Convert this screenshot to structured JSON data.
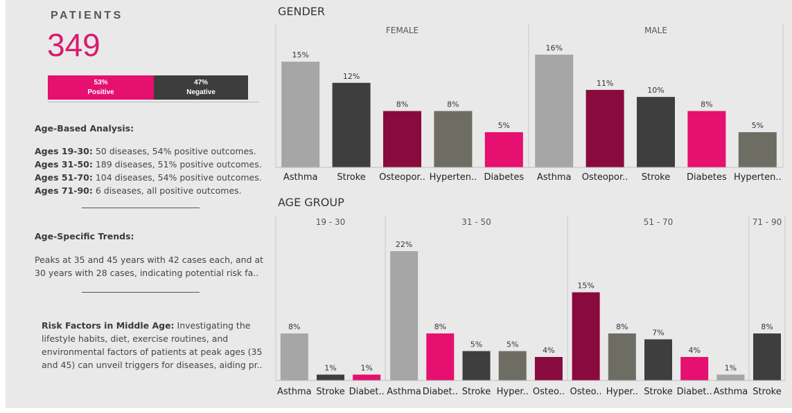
{
  "kpi": {
    "label": "PATIENTS",
    "value": "349"
  },
  "outcome_bar": {
    "positive": {
      "pct": "53%",
      "label": "Positive",
      "value": 53,
      "color": "#e5106f"
    },
    "negative": {
      "pct": "47%",
      "label": "Negative",
      "value": 47,
      "color": "#3d3d3d"
    }
  },
  "left_text": {
    "age_based_title": "Age-Based Analysis:",
    "age_rows": [
      {
        "label": "Ages 19-30:",
        "text": " 50 diseases, 54% positive outcomes."
      },
      {
        "label": "Ages 31-50:",
        "text": " 189 diseases, 51% positive outcomes."
      },
      {
        "label": "Ages 51-70:",
        "text": " 104 diseases, 54% positive outcomes."
      },
      {
        "label": "Ages 71-90:",
        "text": " 6 diseases, all positive outcomes."
      }
    ],
    "trends_title": "Age-Specific Trends:",
    "trends_line1": "Peaks at 35 and 45 years with 42 cases each, and at",
    "trends_line2": "30 years with 28 cases, indicating potential risk fa..",
    "risk_label": "Risk Factors in Middle Age:",
    "risk_line1": " Investigating the",
    "risk_line2": "lifestyle habits, diet, exercise routines, and",
    "risk_line3": "environmental factors of patients at peak ages (35",
    "risk_line4": "and 45) can unveil triggers for diseases, aiding pr.."
  },
  "colors": {
    "Asthma": "#a5a6a5",
    "Stroke": "#3d3e3d",
    "Osteoporosis": "#890a3e",
    "Hypertension": "#6e6d64",
    "Diabetes": "#e5106f"
  },
  "chart_data": [
    {
      "type": "bar",
      "title": "GENDER",
      "panels": [
        {
          "name": "FEMALE",
          "categories": [
            "Asthma",
            "Stroke",
            "Osteopor..",
            "Hyperten..",
            "Diabetes"
          ],
          "diseases": [
            "Asthma",
            "Stroke",
            "Osteoporosis",
            "Hypertension",
            "Diabetes"
          ],
          "values": [
            15,
            12,
            8,
            8,
            5
          ],
          "labels": [
            "15%",
            "12%",
            "8%",
            "8%",
            "5%"
          ]
        },
        {
          "name": "MALE",
          "categories": [
            "Asthma",
            "Osteopor..",
            "Stroke",
            "Diabetes",
            "Hyperten.."
          ],
          "diseases": [
            "Asthma",
            "Osteoporosis",
            "Stroke",
            "Diabetes",
            "Hypertension"
          ],
          "values": [
            16,
            11,
            10,
            8,
            5
          ],
          "labels": [
            "16%",
            "11%",
            "10%",
            "8%",
            "5%"
          ]
        }
      ]
    },
    {
      "type": "bar",
      "title": "AGE GROUP",
      "panels": [
        {
          "name": "19 - 30",
          "categories": [
            "Asthma",
            "Stroke",
            "Diabet.."
          ],
          "diseases": [
            "Asthma",
            "Stroke",
            "Diabetes"
          ],
          "values": [
            8,
            1,
            1
          ],
          "labels": [
            "8%",
            "1%",
            "1%"
          ]
        },
        {
          "name": "31 - 50",
          "categories": [
            "Asthma",
            "Diabet..",
            "Stroke",
            "Hyper..",
            "Osteo.."
          ],
          "diseases": [
            "Asthma",
            "Diabetes",
            "Stroke",
            "Hypertension",
            "Osteoporosis"
          ],
          "values": [
            22,
            8,
            5,
            5,
            4
          ],
          "labels": [
            "22%",
            "8%",
            "5%",
            "5%",
            "4%"
          ]
        },
        {
          "name": "51 - 70",
          "categories": [
            "Osteo..",
            "Hyper..",
            "Stroke",
            "Diabet..",
            "Asthma"
          ],
          "diseases": [
            "Osteoporosis",
            "Hypertension",
            "Stroke",
            "Diabetes",
            "Asthma"
          ],
          "values": [
            15,
            8,
            7,
            4,
            1
          ],
          "labels": [
            "15%",
            "8%",
            "7%",
            "4%",
            "1%"
          ]
        },
        {
          "name": "71 - 90",
          "categories": [
            "Stroke"
          ],
          "diseases": [
            "Stroke"
          ],
          "values": [
            8
          ],
          "labels": [
            "8%"
          ]
        }
      ]
    }
  ]
}
